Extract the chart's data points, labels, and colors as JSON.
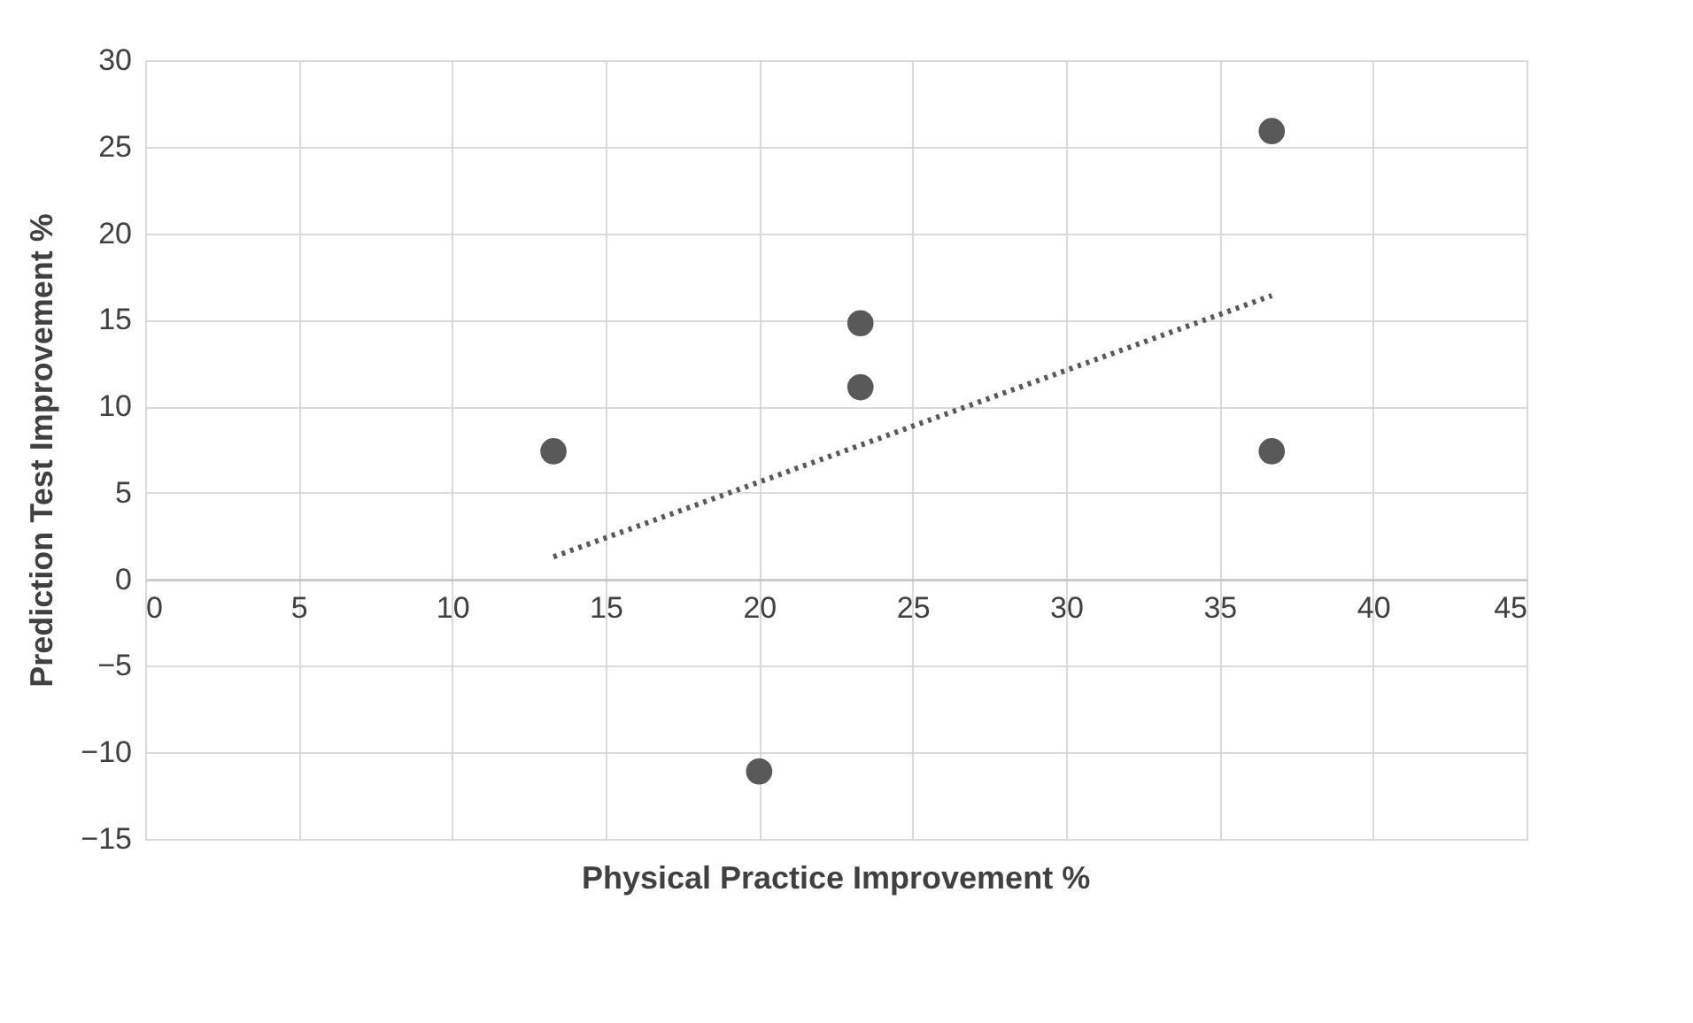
{
  "chart_data": {
    "type": "scatter",
    "xlabel": "Physical Practice Improvement %",
    "ylabel": "Prediction Test Improvement %",
    "xlim": [
      0,
      45
    ],
    "xticks": [
      0,
      5,
      10,
      15,
      20,
      25,
      30,
      35,
      40,
      45
    ],
    "ylim": [
      -15,
      30
    ],
    "yticks": [
      -15,
      -10,
      -5,
      0,
      5,
      10,
      15,
      20,
      25,
      30
    ],
    "grid": true,
    "series": [
      {
        "type": "scatter",
        "color": "#595959",
        "marker": "circle",
        "x": [
          13.3,
          23.3,
          23.3,
          20,
          36.7,
          36.7
        ],
        "values": [
          7.4,
          14.8,
          11.1,
          -11.1,
          25.9,
          7.4
        ]
      },
      {
        "type": "line",
        "color": "#595959",
        "line_style": "dotted",
        "x": [
          13.3,
          36.7
        ],
        "values": [
          1.3,
          16.4
        ]
      }
    ]
  }
}
